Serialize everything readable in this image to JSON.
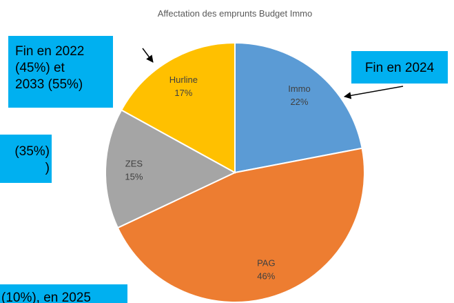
{
  "chart_data": {
    "type": "pie",
    "title": "Affectation des emprunts Budget Immo",
    "categories": [
      "Immo",
      "PAG",
      "ZES",
      "Hurline"
    ],
    "values": [
      22,
      46,
      15,
      17
    ],
    "value_labels": [
      "22%",
      "46%",
      "15%",
      "17%"
    ],
    "colors": [
      "#5b9bd5",
      "#ed7d31",
      "#a5a5a5",
      "#ffc000"
    ],
    "annotations": [
      {
        "lines": [
          "Fin en 2022",
          "(45%) et",
          "2033 (55%)"
        ]
      },
      {
        "lines": [
          "Fin en 2024"
        ]
      },
      {
        "lines": [
          "(35%)",
          ")"
        ]
      },
      {
        "lines": [
          "(10%), en 2025"
        ]
      }
    ]
  }
}
